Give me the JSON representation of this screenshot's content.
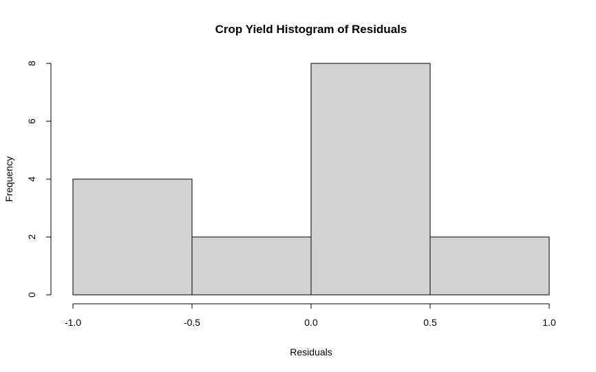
{
  "chart_data": {
    "type": "bar",
    "title": "Crop Yield Histogram of Residuals",
    "xlabel": "Residuals",
    "ylabel": "Frequency",
    "bins": [
      {
        "from": -1.0,
        "to": -0.5,
        "count": 4
      },
      {
        "from": -0.5,
        "to": 0.0,
        "count": 2
      },
      {
        "from": 0.0,
        "to": 0.5,
        "count": 8
      },
      {
        "from": 0.5,
        "to": 1.0,
        "count": 2
      }
    ],
    "xlim": [
      -1.0,
      1.0
    ],
    "ylim": [
      0,
      8
    ],
    "x_ticks": [
      "-1.0",
      "-0.5",
      "0.0",
      "0.5",
      "1.0"
    ],
    "y_ticks": [
      "0",
      "2",
      "4",
      "6",
      "8"
    ],
    "grid": false,
    "legend": "none",
    "bar_fill": "#d3d3d3",
    "bar_stroke": "#000000"
  }
}
